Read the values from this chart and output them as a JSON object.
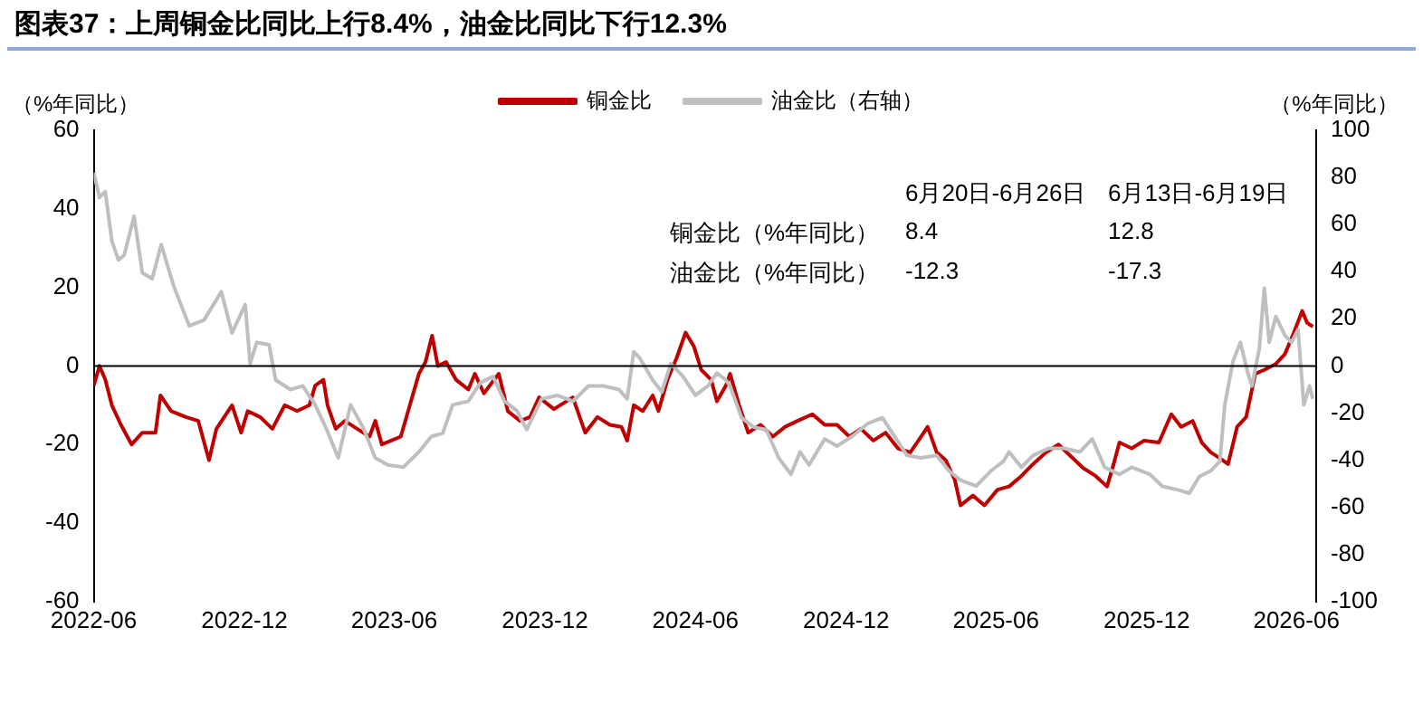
{
  "chart_data": {
    "type": "line",
    "title": "图表37：上周铜金比同比上行8.4%，油金比同比下行12.3%",
    "ylabel": "（%年同比）",
    "y2label": "（%年同比）",
    "annotations": [
      "6月20日-6月26日",
      "6月13日-6月19日",
      "铜金比（%年同比）",
      "8.4",
      "12.8",
      "油金比（%年同比）",
      "-12.3",
      "-17.3"
    ],
    "xlim": [
      "2022-06-01",
      "2026-06-25"
    ],
    "xticks": [
      "2022-06",
      "2022-12",
      "2023-06",
      "2023-12",
      "2024-06",
      "2024-12",
      "2025-06",
      "2025-12",
      "2026-06"
    ],
    "ylim": [
      -60,
      60
    ],
    "yticks": [
      -60,
      -40,
      -20,
      0,
      20,
      40,
      60
    ],
    "y2lim": [
      -100,
      100
    ],
    "y2ticks": [
      -100,
      -80,
      -60,
      -40,
      -20,
      0,
      20,
      40,
      60,
      80,
      100
    ],
    "grid": false,
    "legend": "top",
    "marker": "none",
    "line_style": "solid",
    "ref_lines": [
      {
        "axis": "y",
        "value": 0,
        "color": "#000000"
      }
    ],
    "series": [
      {
        "name": "铜金比",
        "color": "#c00000",
        "x": [
          "2022-06-01",
          "2022-06-08",
          "2022-06-15",
          "2022-06-23",
          "2022-07-04",
          "2022-07-17",
          "2022-07-30",
          "2022-08-15",
          "2022-08-21",
          "2022-09-03",
          "2022-09-21",
          "2022-10-06",
          "2022-10-19",
          "2022-10-28",
          "2022-11-16",
          "2022-11-27",
          "2022-12-05",
          "2022-12-20",
          "2023-01-04",
          "2023-01-19",
          "2023-02-03",
          "2023-02-18",
          "2023-02-25",
          "2023-03-07",
          "2023-03-12",
          "2023-03-22",
          "2023-04-02",
          "2023-04-17",
          "2023-05-02",
          "2023-05-09",
          "2023-05-17",
          "2023-06-09",
          "2023-06-20",
          "2023-07-01",
          "2023-07-09",
          "2023-07-17",
          "2023-07-24",
          "2023-08-03",
          "2023-08-15",
          "2023-08-30",
          "2023-09-07",
          "2023-09-18",
          "2023-09-25",
          "2023-10-06",
          "2023-10-17",
          "2023-11-01",
          "2023-11-13",
          "2023-11-24",
          "2023-12-12",
          "2024-01-04",
          "2024-01-19",
          "2024-02-03",
          "2024-02-18",
          "2024-03-03",
          "2024-03-10",
          "2024-03-18",
          "2024-03-29",
          "2024-04-10",
          "2024-04-17",
          "2024-04-28",
          "2024-05-09",
          "2024-05-20",
          "2024-05-30",
          "2024-06-08",
          "2024-06-20",
          "2024-06-27",
          "2024-07-08",
          "2024-07-13",
          "2024-07-24",
          "2024-08-04",
          "2024-08-19",
          "2024-09-03",
          "2024-09-18",
          "2024-10-03",
          "2024-10-21",
          "2024-11-05",
          "2024-11-20",
          "2024-12-05",
          "2024-12-19",
          "2025-01-03",
          "2025-01-18",
          "2025-02-02",
          "2025-02-17",
          "2025-03-02",
          "2025-03-10",
          "2025-03-21",
          "2025-04-01",
          "2025-04-12",
          "2025-04-19",
          "2025-05-04",
          "2025-05-18",
          "2025-06-03",
          "2025-06-17",
          "2025-07-02",
          "2025-07-16",
          "2025-08-01",
          "2025-08-16",
          "2025-08-31",
          "2025-09-15",
          "2025-09-30",
          "2025-10-14",
          "2025-10-22",
          "2025-10-29",
          "2025-11-13",
          "2025-11-28",
          "2025-12-16",
          "2025-12-31",
          "2026-01-12",
          "2026-01-26",
          "2026-02-06",
          "2026-02-17",
          "2026-02-28",
          "2026-03-10",
          "2026-03-21",
          "2026-04-01",
          "2026-04-12",
          "2026-04-23",
          "2026-05-07",
          "2026-05-18",
          "2026-05-29",
          "2026-06-08",
          "2026-06-14",
          "2026-06-21"
        ],
        "values": [
          -5,
          0,
          -3.5,
          -10,
          -15,
          -20,
          -17,
          -17,
          -7.5,
          -11.5,
          -13,
          -14,
          -24,
          -16,
          -10,
          -17,
          -11.5,
          -13,
          -16,
          -10,
          -11.5,
          -10,
          -5,
          -3.5,
          -10,
          -16,
          -14,
          -16,
          -18,
          -14,
          -20,
          -18,
          -10,
          -2,
          1,
          7.7,
          0,
          1,
          -3.5,
          -6,
          -2,
          -7,
          -5,
          -2,
          -11.5,
          -14,
          -13,
          -8,
          -11,
          -8,
          -17,
          -13,
          -15,
          -15.5,
          -19,
          -10,
          -11.5,
          -7.5,
          -11.5,
          -3.5,
          2,
          8.5,
          5,
          -1,
          -3.5,
          -9,
          -5,
          -2,
          -10,
          -17,
          -15,
          -18,
          -15.5,
          -14,
          -12.3,
          -15,
          -15,
          -18,
          -16,
          -19,
          -17,
          -21,
          -22,
          -18,
          -15.5,
          -22,
          -24,
          -29,
          -35.5,
          -33,
          -35.5,
          -31.5,
          -30.7,
          -28,
          -25,
          -22,
          -20,
          -23,
          -26,
          -28,
          -30.7,
          -25,
          -19.5,
          -21,
          -19,
          -19.5,
          -12.3,
          -15.5,
          -14,
          -19.5,
          -22,
          -23.5,
          -25,
          -15.5,
          -13,
          -2,
          -1,
          0.5,
          3,
          8.5,
          14,
          11,
          10
        ]
      },
      {
        "name": "油金比（右轴）",
        "color": "#bfbfbf",
        "axis": "y2",
        "x": [
          "2022-06-01",
          "2022-06-08",
          "2022-06-15",
          "2022-06-23",
          "2022-07-01",
          "2022-07-08",
          "2022-07-20",
          "2022-07-30",
          "2022-08-11",
          "2022-08-22",
          "2022-09-06",
          "2022-09-25",
          "2022-10-13",
          "2022-11-03",
          "2022-11-16",
          "2022-12-02",
          "2022-12-08",
          "2022-12-16",
          "2022-12-31",
          "2023-01-08",
          "2023-01-26",
          "2023-02-10",
          "2023-02-25",
          "2023-03-11",
          "2023-03-25",
          "2023-04-09",
          "2023-04-24",
          "2023-05-09",
          "2023-05-24",
          "2023-06-12",
          "2023-07-01",
          "2023-07-16",
          "2023-07-30",
          "2023-08-11",
          "2023-08-30",
          "2023-09-14",
          "2023-09-29",
          "2023-10-13",
          "2023-10-28",
          "2023-11-09",
          "2023-11-27",
          "2023-12-16",
          "2024-01-04",
          "2024-01-23",
          "2024-02-10",
          "2024-02-29",
          "2024-03-10",
          "2024-03-18",
          "2024-03-25",
          "2024-04-10",
          "2024-04-21",
          "2024-05-02",
          "2024-05-17",
          "2024-06-01",
          "2024-06-16",
          "2024-06-27",
          "2024-07-08",
          "2024-07-13",
          "2024-07-27",
          "2024-08-11",
          "2024-08-26",
          "2024-09-10",
          "2024-09-25",
          "2024-10-06",
          "2024-10-17",
          "2024-11-05",
          "2024-11-20",
          "2024-12-08",
          "2024-12-27",
          "2025-01-14",
          "2025-01-29",
          "2025-02-13",
          "2025-03-02",
          "2025-03-21",
          "2025-04-05",
          "2025-04-19",
          "2025-05-08",
          "2025-05-26",
          "2025-06-10",
          "2025-06-17",
          "2025-07-02",
          "2025-07-16",
          "2025-08-04",
          "2025-08-23",
          "2025-09-11",
          "2025-09-26",
          "2025-10-11",
          "2025-10-29",
          "2025-11-13",
          "2025-12-05",
          "2025-12-20",
          "2026-01-07",
          "2026-01-22",
          "2026-02-03",
          "2026-02-17",
          "2026-02-28",
          "2026-03-06",
          "2026-03-16",
          "2026-03-25",
          "2026-04-03",
          "2026-04-08",
          "2026-04-17",
          "2026-04-23",
          "2026-04-29",
          "2026-05-07",
          "2026-05-18",
          "2026-05-26",
          "2026-06-03",
          "2026-06-10",
          "2026-06-17",
          "2026-06-21"
        ],
        "values": [
          82,
          71.5,
          74,
          53,
          45,
          47,
          63.5,
          39.5,
          37,
          51.5,
          34,
          17,
          19.5,
          31.5,
          14,
          26,
          1,
          10,
          9,
          -6,
          -10,
          -8.5,
          -16.5,
          -27,
          -39,
          -16.5,
          -26,
          -39,
          -42,
          -43,
          -36.5,
          -30,
          -28.5,
          -16.5,
          -15,
          -7,
          -4.5,
          -15,
          -19,
          -27,
          -14,
          -12.5,
          -15,
          -8.5,
          -8.5,
          -10,
          -14,
          6,
          3.5,
          -6,
          -11,
          1,
          -4.5,
          -12.5,
          -8.5,
          -3,
          -6,
          -8.5,
          -22,
          -26,
          -27,
          -39,
          -46,
          -36.5,
          -42,
          -31,
          -34,
          -30,
          -24.5,
          -22,
          -30,
          -38,
          -39,
          -38,
          -44.5,
          -48.5,
          -51,
          -44.5,
          -40.5,
          -36.5,
          -43,
          -38,
          -35,
          -35,
          -36.5,
          -31,
          -43,
          -46,
          -43,
          -46,
          -51,
          -52.5,
          -54,
          -47,
          -44.5,
          -40.5,
          -16.5,
          2,
          10,
          -3,
          -8.5,
          7.5,
          33,
          10,
          21,
          13,
          10,
          15.5,
          -16.5,
          -8.5,
          -14
        ]
      }
    ]
  }
}
